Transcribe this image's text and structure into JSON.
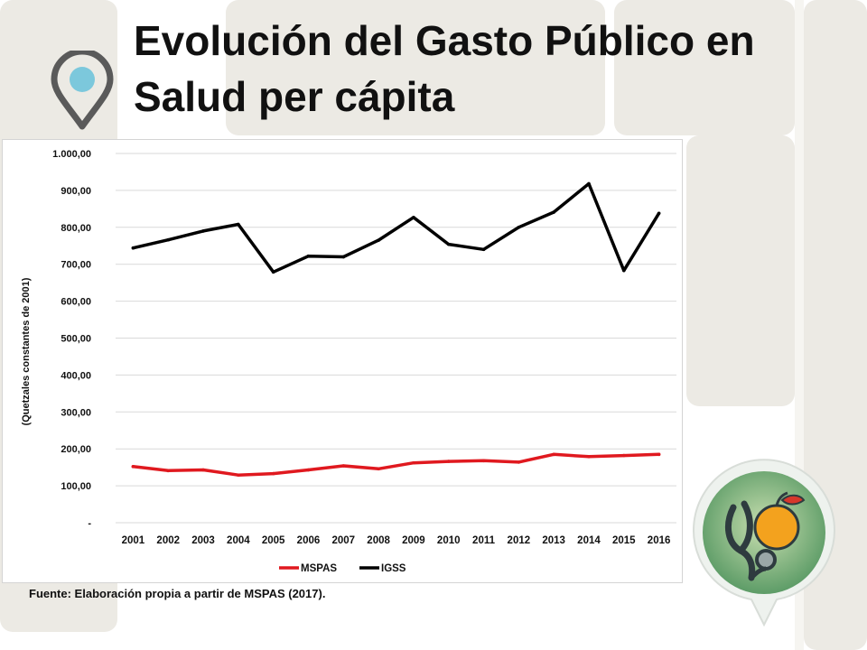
{
  "slide": {
    "title": "Evolución del Gasto Público en Salud per cápita",
    "source": "Fuente: Elaboración propia a partir de MSPAS (2017)."
  },
  "icons": {
    "pin": "map-pin-icon",
    "health": "stethoscope-fruit-icon"
  },
  "colors": {
    "mspas": "#e0191f",
    "igss": "#000000",
    "pin_outline": "#5a5a5a",
    "pin_fill": "#7cc8dc",
    "badge_green": "#6aa86a"
  },
  "chart_data": {
    "type": "line",
    "title": "",
    "xlabel": "",
    "ylabel": "(Quetzales constantes de 2001)",
    "categories": [
      "2001",
      "2002",
      "2003",
      "2004",
      "2005",
      "2006",
      "2007",
      "2008",
      "2009",
      "2010",
      "2011",
      "2012",
      "2013",
      "2014",
      "2015",
      "2016"
    ],
    "ylim": [
      0,
      1000
    ],
    "yticks": [
      0,
      100,
      200,
      300,
      400,
      500,
      600,
      700,
      800,
      900,
      1000
    ],
    "ytick_labels": [
      "-",
      "100,00",
      "200,00",
      "300,00",
      "400,00",
      "500,00",
      "600,00",
      "700,00",
      "800,00",
      "900,00",
      "1.000,00"
    ],
    "grid": true,
    "legend_position": "bottom",
    "series": [
      {
        "name": "MSPAS",
        "color": "#e0191f",
        "values": [
          152,
          141,
          143,
          129,
          133,
          143,
          154,
          146,
          162,
          166,
          168,
          164,
          185,
          179,
          182,
          185
        ]
      },
      {
        "name": "IGSS",
        "color": "#000000",
        "values": [
          744,
          766,
          790,
          808,
          679,
          722,
          720,
          765,
          827,
          754,
          740,
          800,
          841,
          918,
          683,
          838
        ]
      }
    ]
  }
}
